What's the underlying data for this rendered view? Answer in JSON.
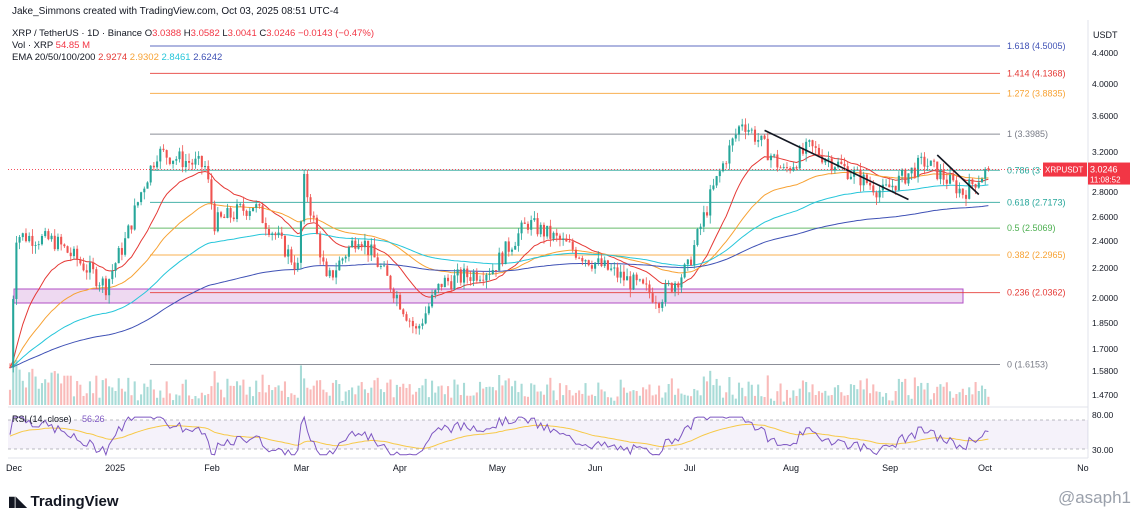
{
  "header": {
    "created_by": "Jake_Simmons created with TradingView.com, Oct 03, 2025 08:51 UTC-4",
    "symbol_line": "XRP / TetherUS · 1D · Binance",
    "ohlc": [
      {
        "k": "O",
        "v": "3.0388"
      },
      {
        "k": "H",
        "v": "3.0582"
      },
      {
        "k": "L",
        "v": "3.0041"
      },
      {
        "k": "C",
        "v": "3.0246"
      }
    ],
    "change": "−0.0143 (−0.47%)",
    "vol_label": "Vol · XRP",
    "vol_value": "54.85 M",
    "ema_label": "EMA 20/50/100/200",
    "ema_values": [
      {
        "v": "2.9274",
        "color": "#e53935"
      },
      {
        "v": "2.9302",
        "color": "#f7a234"
      },
      {
        "v": "2.8461",
        "color": "#26c6da"
      },
      {
        "v": "2.6242",
        "color": "#3f51b5"
      }
    ]
  },
  "price_axis": {
    "currency": "USDT",
    "ticks": [
      "4.4000",
      "4.0000",
      "3.6000",
      "3.2000",
      "2.8000",
      "2.6000",
      "2.4000",
      "2.2000",
      "2.0000",
      "1.8500",
      "1.7000",
      "1.5800",
      "1.4700"
    ]
  },
  "current_price": {
    "symbol": "XRPUSDT",
    "price": "3.0246",
    "countdown": "11:08:52",
    "color": "#f23645"
  },
  "fib_levels": [
    {
      "label": "1.618 (4.5005)",
      "value": 4.5005,
      "color": "#3f51b5"
    },
    {
      "label": "1.414 (4.1368)",
      "value": 4.1368,
      "color": "#e53935"
    },
    {
      "label": "1.272 (3.8835)",
      "value": 3.8835,
      "color": "#f7a234"
    },
    {
      "label": "1 (3.3985)",
      "value": 3.3985,
      "color": "#787b86"
    },
    {
      "label": "0.786 (3",
      "value": 3.0169,
      "color": "#26a69a"
    },
    {
      "label": "0.618 (2.7173)",
      "value": 2.7173,
      "color": "#26a69a"
    },
    {
      "label": "0.5 (2.5069)",
      "value": 2.5069,
      "color": "#4caf50"
    },
    {
      "label": "0.382 (2.2965)",
      "value": 2.2965,
      "color": "#f7a234"
    },
    {
      "label": "0.236 (2.0362)",
      "value": 2.0362,
      "color": "#e53935"
    },
    {
      "label": "0 (1.6153)",
      "value": 1.6153,
      "color": "#787b86"
    }
  ],
  "rsi": {
    "label": "RSI (14, close)",
    "value": "56.26",
    "ticks": [
      "80.00",
      "30.00"
    ]
  },
  "time_axis": [
    "Dec",
    "2025",
    "Feb",
    "Mar",
    "Apr",
    "May",
    "Jun",
    "Jul",
    "Aug",
    "Sep",
    "Oct",
    "No"
  ],
  "footer": {
    "brand": "TradingView",
    "watermark": "@asaph1"
  },
  "colors": {
    "up": "#26a69a",
    "down": "#ef5350",
    "zone": "#ce93d8"
  },
  "chart_data": {
    "type": "candlestick",
    "symbol": "XRP / TetherUS",
    "interval": "1D",
    "support_zone": [
      1.97,
      2.06
    ],
    "price_series_approx": [
      {
        "x": "2024-12-01",
        "y": 1.6
      },
      {
        "x": "2024-12-03",
        "y": 2.45
      },
      {
        "x": "2024-12-15",
        "y": 2.4
      },
      {
        "x": "2024-12-31",
        "y": 2.08
      },
      {
        "x": "2025-01-06",
        "y": 2.4
      },
      {
        "x": "2025-01-16",
        "y": 3.2
      },
      {
        "x": "2025-01-31",
        "y": 3.05
      },
      {
        "x": "2025-02-03",
        "y": 2.55
      },
      {
        "x": "2025-02-15",
        "y": 2.7
      },
      {
        "x": "2025-03-01",
        "y": 2.2
      },
      {
        "x": "2025-03-03",
        "y": 2.9
      },
      {
        "x": "2025-03-10",
        "y": 2.1
      },
      {
        "x": "2025-03-20",
        "y": 2.45
      },
      {
        "x": "2025-04-07",
        "y": 1.8
      },
      {
        "x": "2025-04-15",
        "y": 2.1
      },
      {
        "x": "2025-05-01",
        "y": 2.2
      },
      {
        "x": "2025-05-12",
        "y": 2.55
      },
      {
        "x": "2025-06-01",
        "y": 2.25
      },
      {
        "x": "2025-06-22",
        "y": 2.0
      },
      {
        "x": "2025-07-01",
        "y": 2.2
      },
      {
        "x": "2025-07-18",
        "y": 3.55
      },
      {
        "x": "2025-07-31",
        "y": 3.0
      },
      {
        "x": "2025-08-08",
        "y": 3.25
      },
      {
        "x": "2025-08-31",
        "y": 2.8
      },
      {
        "x": "2025-09-13",
        "y": 3.1
      },
      {
        "x": "2025-09-25",
        "y": 2.8
      },
      {
        "x": "2025-10-03",
        "y": 3.0246
      }
    ]
  }
}
